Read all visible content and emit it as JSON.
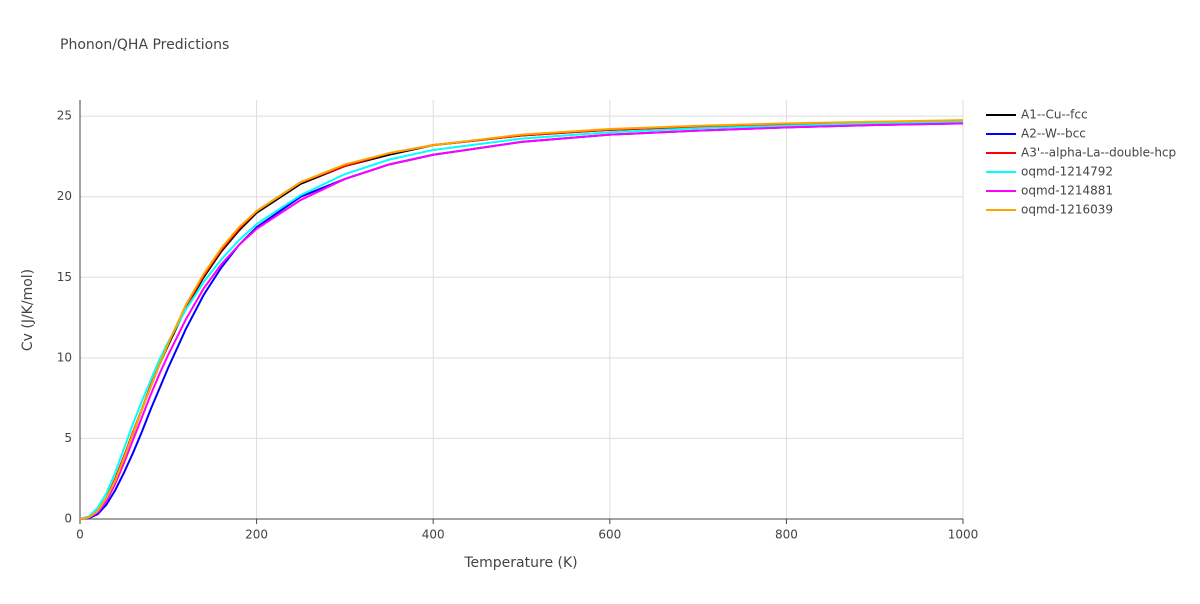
{
  "chart_data": {
    "type": "line",
    "title": "Phonon/QHA Predictions",
    "x_label": "Temperature (K)",
    "y_label": "Cv (J/K/mol)",
    "x": [
      0,
      10,
      20,
      30,
      40,
      50,
      60,
      70,
      80,
      90,
      100,
      120,
      140,
      160,
      180,
      200,
      250,
      300,
      350,
      400,
      500,
      600,
      700,
      800,
      900,
      1000
    ],
    "series": [
      {
        "name": "A1--Cu--fcc",
        "color": "#000000",
        "values": [
          0,
          0.1,
          0.5,
          1.3,
          2.5,
          3.9,
          5.3,
          6.8,
          8.2,
          9.6,
          10.8,
          13.1,
          15.0,
          16.6,
          17.9,
          19.0,
          20.8,
          21.9,
          22.6,
          23.2,
          23.8,
          24.15,
          24.35,
          24.5,
          24.6,
          24.7
        ]
      },
      {
        "name": "A2--W--bcc",
        "color": "#0000ff",
        "values": [
          0,
          0.05,
          0.3,
          0.9,
          1.8,
          2.9,
          4.1,
          5.4,
          6.8,
          8.1,
          9.4,
          11.8,
          13.9,
          15.6,
          17.0,
          18.1,
          20.0,
          21.1,
          22.0,
          22.6,
          23.4,
          23.85,
          24.1,
          24.3,
          24.45,
          24.55
        ]
      },
      {
        "name": "A3'--alpha-La--double-hcp",
        "color": "#ff0000",
        "values": [
          0,
          0.1,
          0.5,
          1.3,
          2.5,
          3.9,
          5.4,
          6.8,
          8.3,
          9.6,
          10.9,
          13.2,
          15.1,
          16.7,
          18.0,
          19.1,
          20.9,
          21.9,
          22.7,
          23.2,
          23.8,
          24.15,
          24.35,
          24.5,
          24.6,
          24.65
        ]
      },
      {
        "name": "oqmd-1214792",
        "color": "#00ffff",
        "values": [
          0,
          0.15,
          0.7,
          1.6,
          2.9,
          4.4,
          5.9,
          7.3,
          8.6,
          9.9,
          11.0,
          13.0,
          14.7,
          16.1,
          17.3,
          18.3,
          20.1,
          21.4,
          22.3,
          22.9,
          23.6,
          24.0,
          24.25,
          24.4,
          24.55,
          24.65
        ]
      },
      {
        "name": "oqmd-1214881",
        "color": "#ff00ff",
        "values": [
          0,
          0.1,
          0.4,
          1.1,
          2.2,
          3.5,
          4.9,
          6.3,
          7.7,
          9.0,
          10.2,
          12.4,
          14.3,
          15.8,
          17.0,
          18.0,
          19.8,
          21.1,
          22.0,
          22.6,
          23.4,
          23.85,
          24.1,
          24.3,
          24.45,
          24.55
        ]
      },
      {
        "name": "oqmd-1216039",
        "color": "#ffa500",
        "values": [
          0,
          0.1,
          0.5,
          1.3,
          2.4,
          3.8,
          5.3,
          6.8,
          8.2,
          9.6,
          10.9,
          13.3,
          15.2,
          16.8,
          18.1,
          19.1,
          20.9,
          22.0,
          22.7,
          23.2,
          23.85,
          24.2,
          24.4,
          24.55,
          24.65,
          24.75
        ]
      }
    ],
    "xlim": [
      0,
      1000
    ],
    "xticks": [
      0,
      200,
      400,
      600,
      800,
      1000
    ],
    "ylim": [
      0,
      26
    ],
    "yticks": [
      0,
      5,
      10,
      15,
      20,
      25
    ],
    "grid": true
  }
}
